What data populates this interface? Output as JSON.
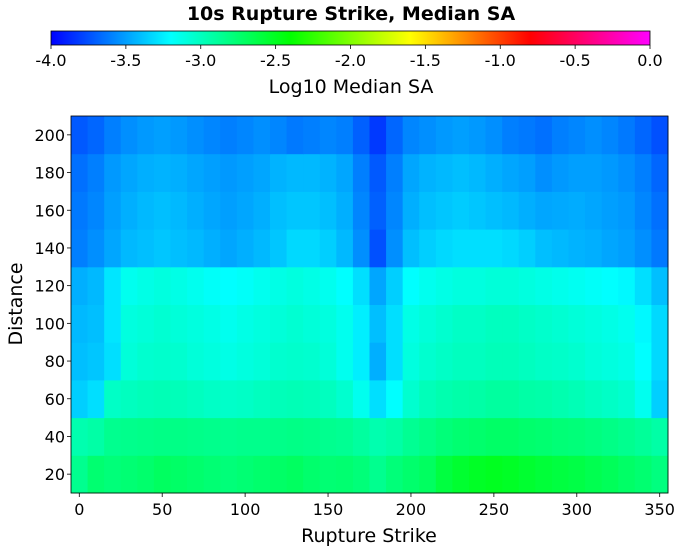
{
  "chart_data": {
    "type": "heatmap",
    "title": "10s Rupture Strike, Median SA",
    "xlabel": "Rupture Strike",
    "ylabel": "Distance",
    "colorbar": {
      "label": "Log10 Median SA",
      "range": [
        -4.0,
        0.0
      ],
      "ticks": [
        "-4.0",
        "-3.5",
        "-3.0",
        "-2.5",
        "-2.0",
        "-1.5",
        "-1.0",
        "-0.5",
        "0.0"
      ],
      "colormap": [
        "#0000ff",
        "#00ffff",
        "#00ff00",
        "#ffff00",
        "#ff0000",
        "#ff00ff"
      ]
    },
    "x": [
      0,
      10,
      20,
      30,
      40,
      50,
      60,
      70,
      80,
      90,
      100,
      110,
      120,
      130,
      140,
      150,
      160,
      170,
      180,
      190,
      200,
      210,
      220,
      230,
      240,
      250,
      260,
      270,
      280,
      290,
      300,
      310,
      320,
      330,
      340,
      350
    ],
    "y": [
      20,
      40,
      60,
      80,
      100,
      120,
      140,
      160,
      180,
      200
    ],
    "xlim": [
      -5,
      355
    ],
    "ylim": [
      10,
      210
    ],
    "xticks": [
      "0",
      "50",
      "100",
      "150",
      "200",
      "250",
      "300",
      "350"
    ],
    "yticks": [
      "20",
      "40",
      "60",
      "80",
      "100",
      "120",
      "140",
      "160",
      "180",
      "200"
    ],
    "values": [
      [
        -2.85,
        -2.75,
        -2.78,
        -2.76,
        -2.74,
        -2.7,
        -2.72,
        -2.74,
        -2.76,
        -2.78,
        -2.76,
        -2.74,
        -2.72,
        -2.7,
        -2.74,
        -2.76,
        -2.75,
        -2.78,
        -2.85,
        -2.78,
        -2.74,
        -2.7,
        -2.6,
        -2.55,
        -2.52,
        -2.5,
        -2.52,
        -2.55,
        -2.58,
        -2.6,
        -2.62,
        -2.65,
        -2.68,
        -2.72,
        -2.75,
        -2.8
      ],
      [
        -2.95,
        -2.92,
        -2.85,
        -2.84,
        -2.83,
        -2.82,
        -2.82,
        -2.83,
        -2.84,
        -2.85,
        -2.84,
        -2.84,
        -2.83,
        -2.82,
        -2.83,
        -2.85,
        -2.86,
        -2.9,
        -2.95,
        -2.92,
        -2.86,
        -2.82,
        -2.78,
        -2.75,
        -2.74,
        -2.72,
        -2.72,
        -2.74,
        -2.75,
        -2.77,
        -2.78,
        -2.8,
        -2.82,
        -2.85,
        -2.88,
        -2.92
      ],
      [
        -3.35,
        -3.3,
        -3.02,
        -3.0,
        -2.98,
        -2.97,
        -2.98,
        -3.0,
        -3.02,
        -3.03,
        -3.02,
        -3.0,
        -2.98,
        -2.97,
        -2.98,
        -3.0,
        -3.05,
        -3.15,
        -3.3,
        -3.2,
        -3.05,
        -2.98,
        -2.95,
        -2.93,
        -2.92,
        -2.9,
        -2.9,
        -2.92,
        -2.93,
        -2.95,
        -2.97,
        -3.0,
        -3.02,
        -3.05,
        -3.15,
        -3.35
      ],
      [
        -3.4,
        -3.38,
        -3.3,
        -3.08,
        -3.05,
        -3.04,
        -3.05,
        -3.08,
        -3.1,
        -3.12,
        -3.1,
        -3.08,
        -3.05,
        -3.04,
        -3.05,
        -3.08,
        -3.15,
        -3.25,
        -3.45,
        -3.3,
        -3.1,
        -3.05,
        -3.02,
        -3.0,
        -3.0,
        -2.98,
        -2.98,
        -3.0,
        -3.02,
        -3.03,
        -3.05,
        -3.08,
        -3.1,
        -3.12,
        -3.2,
        -3.32
      ],
      [
        -3.42,
        -3.4,
        -3.28,
        -3.1,
        -3.08,
        -3.06,
        -3.08,
        -3.1,
        -3.12,
        -3.15,
        -3.12,
        -3.1,
        -3.08,
        -3.06,
        -3.08,
        -3.1,
        -3.15,
        -3.25,
        -3.4,
        -3.3,
        -3.12,
        -3.08,
        -3.05,
        -3.02,
        -3.02,
        -3.0,
        -3.0,
        -3.02,
        -3.04,
        -3.06,
        -3.08,
        -3.1,
        -3.12,
        -3.15,
        -3.22,
        -3.32
      ],
      [
        -3.45,
        -3.42,
        -3.28,
        -3.15,
        -3.12,
        -3.1,
        -3.12,
        -3.15,
        -3.18,
        -3.2,
        -3.18,
        -3.15,
        -3.12,
        -3.1,
        -3.12,
        -3.15,
        -3.2,
        -3.3,
        -3.48,
        -3.35,
        -3.2,
        -3.15,
        -3.12,
        -3.1,
        -3.1,
        -3.08,
        -3.08,
        -3.1,
        -3.12,
        -3.14,
        -3.16,
        -3.18,
        -3.2,
        -3.22,
        -3.3,
        -3.4
      ],
      [
        -3.6,
        -3.55,
        -3.48,
        -3.42,
        -3.4,
        -3.38,
        -3.4,
        -3.42,
        -3.45,
        -3.48,
        -3.45,
        -3.42,
        -3.38,
        -3.32,
        -3.32,
        -3.35,
        -3.42,
        -3.55,
        -3.75,
        -3.55,
        -3.4,
        -3.35,
        -3.32,
        -3.3,
        -3.3,
        -3.3,
        -3.32,
        -3.35,
        -3.4,
        -3.42,
        -3.44,
        -3.45,
        -3.48,
        -3.5,
        -3.55,
        -3.62
      ],
      [
        -3.62,
        -3.58,
        -3.5,
        -3.45,
        -3.42,
        -3.4,
        -3.42,
        -3.45,
        -3.48,
        -3.5,
        -3.48,
        -3.45,
        -3.4,
        -3.38,
        -3.38,
        -3.4,
        -3.45,
        -3.58,
        -3.7,
        -3.58,
        -3.45,
        -3.4,
        -3.38,
        -3.36,
        -3.38,
        -3.4,
        -3.42,
        -3.45,
        -3.48,
        -3.47,
        -3.46,
        -3.48,
        -3.5,
        -3.52,
        -3.58,
        -3.65
      ],
      [
        -3.65,
        -3.6,
        -3.52,
        -3.48,
        -3.45,
        -3.44,
        -3.45,
        -3.48,
        -3.5,
        -3.52,
        -3.5,
        -3.48,
        -3.44,
        -3.42,
        -3.42,
        -3.44,
        -3.48,
        -3.6,
        -3.72,
        -3.6,
        -3.48,
        -3.44,
        -3.42,
        -3.4,
        -3.42,
        -3.45,
        -3.48,
        -3.5,
        -3.55,
        -3.52,
        -3.5,
        -3.5,
        -3.52,
        -3.55,
        -3.6,
        -3.68
      ],
      [
        -3.72,
        -3.68,
        -3.6,
        -3.55,
        -3.52,
        -3.5,
        -3.52,
        -3.55,
        -3.58,
        -3.6,
        -3.58,
        -3.55,
        -3.58,
        -3.62,
        -3.6,
        -3.58,
        -3.6,
        -3.7,
        -3.82,
        -3.68,
        -3.58,
        -3.55,
        -3.52,
        -3.5,
        -3.52,
        -3.55,
        -3.6,
        -3.62,
        -3.65,
        -3.6,
        -3.58,
        -3.55,
        -3.58,
        -3.62,
        -3.68,
        -3.75
      ]
    ]
  }
}
